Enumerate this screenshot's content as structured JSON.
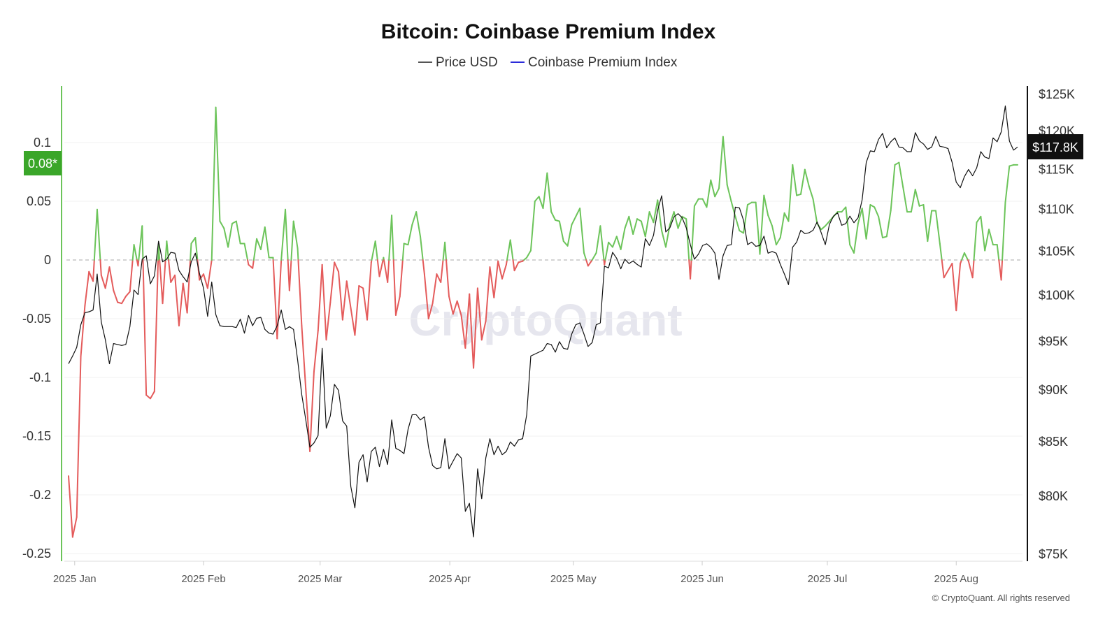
{
  "chart_data": {
    "type": "line",
    "title": "Bitcoin: Coinbase Premium Index",
    "legend": [
      {
        "name": "Price USD",
        "color": "#555555"
      },
      {
        "name": "Coinbase Premium Index",
        "color": "#2b2bd9"
      }
    ],
    "legend_position": "top-center",
    "colors": {
      "positive": "#6cc45a",
      "negative": "#e45b5b",
      "price": "#111111",
      "left_axis": "#6cc45a",
      "badge_left": "#3aa629",
      "badge_right": "#111111"
    },
    "left_axis": {
      "ylim": [
        -0.25,
        0.13
      ],
      "ticks": [
        {
          "label": "0.1",
          "value": 0.1
        },
        {
          "label": "0.05",
          "value": 0.05
        },
        {
          "label": "0",
          "value": 0
        },
        {
          "label": "-0.05",
          "value": -0.05
        },
        {
          "label": "-0.1",
          "value": -0.1
        },
        {
          "label": "-0.15",
          "value": -0.15
        },
        {
          "label": "-0.2",
          "value": -0.2
        },
        {
          "label": "-0.25",
          "value": -0.25
        }
      ],
      "current_label": "0.08*",
      "current_value": 0.081
    },
    "right_axis": {
      "scale": "log",
      "ylim": [
        75,
        125
      ],
      "ticks": [
        {
          "label": "$125K",
          "value": 125
        },
        {
          "label": "$120K",
          "value": 120
        },
        {
          "label": "$115K",
          "value": 115
        },
        {
          "label": "$110K",
          "value": 110
        },
        {
          "label": "$105K",
          "value": 105
        },
        {
          "label": "$100K",
          "value": 100
        },
        {
          "label": "$95K",
          "value": 95
        },
        {
          "label": "$90K",
          "value": 90
        },
        {
          "label": "$85K",
          "value": 85
        },
        {
          "label": "$80K",
          "value": 80
        },
        {
          "label": "$75K",
          "value": 75
        }
      ],
      "current_label": "$117.8K",
      "current_value": 117.8
    },
    "x_ticks": [
      {
        "label": "2025 Jan",
        "index": 1.5
      },
      {
        "label": "2025 Feb",
        "index": 33
      },
      {
        "label": "2025 Mar",
        "index": 61.5
      },
      {
        "label": "2025 Apr",
        "index": 93.2
      },
      {
        "label": "2025 May",
        "index": 123.4
      },
      {
        "label": "2025 Jun",
        "index": 154.9
      },
      {
        "label": "2025 Jul",
        "index": 185.5
      },
      {
        "label": "2025 Aug",
        "index": 217
      }
    ],
    "grid": true,
    "series": [
      {
        "name": "Coinbase Premium Index",
        "axis": "left",
        "values": [
          -0.184,
          -0.236,
          -0.219,
          -0.082,
          -0.039,
          -0.01,
          -0.018,
          0.043,
          -0.013,
          -0.024,
          -0.006,
          -0.026,
          -0.036,
          -0.037,
          -0.031,
          -0.027,
          0.013,
          -0.005,
          0.029,
          -0.115,
          -0.118,
          -0.112,
          0.013,
          -0.037,
          0.016,
          -0.019,
          -0.013,
          -0.056,
          -0.02,
          -0.045,
          0.014,
          0.019,
          -0.017,
          -0.012,
          -0.024,
          0.0,
          0.13,
          0.033,
          0.027,
          0.011,
          0.031,
          0.033,
          0.014,
          0.014,
          -0.004,
          -0.007,
          0.018,
          0.009,
          0.028,
          0.002,
          0.002,
          -0.067,
          0.0,
          0.043,
          -0.026,
          0.033,
          0.01,
          -0.056,
          -0.11,
          -0.163,
          -0.095,
          -0.06,
          -0.004,
          -0.068,
          -0.036,
          -0.002,
          -0.01,
          -0.051,
          -0.018,
          -0.041,
          -0.064,
          -0.022,
          -0.024,
          -0.051,
          -0.002,
          0.016,
          -0.014,
          0.002,
          -0.019,
          0.038,
          -0.047,
          -0.031,
          0.014,
          0.013,
          0.03,
          0.041,
          0.02,
          -0.012,
          -0.05,
          -0.037,
          -0.012,
          -0.019,
          0.015,
          -0.031,
          -0.046,
          -0.035,
          -0.047,
          -0.075,
          -0.029,
          -0.092,
          -0.024,
          -0.068,
          -0.052,
          -0.006,
          -0.032,
          -0.001,
          -0.016,
          -0.004,
          0.017,
          -0.009,
          -0.002,
          -0.001,
          0.002,
          0.008,
          0.05,
          0.054,
          0.044,
          0.074,
          0.041,
          0.034,
          0.033,
          0.016,
          0.012,
          0.03,
          0.037,
          0.044,
          0.006,
          -0.005,
          0.0,
          0.006,
          0.029,
          -0.004,
          0.015,
          0.011,
          0.02,
          0.009,
          0.027,
          0.037,
          0.022,
          0.035,
          0.033,
          0.02,
          0.041,
          0.032,
          0.051,
          0.025,
          0.011,
          0.03,
          0.041,
          0.027,
          0.037,
          0.035,
          -0.016,
          0.046,
          0.052,
          0.052,
          0.045,
          0.068,
          0.054,
          0.061,
          0.105,
          0.064,
          0.05,
          0.037,
          0.025,
          0.023,
          0.047,
          0.049,
          0.049,
          0.005,
          0.055,
          0.038,
          0.029,
          0.013,
          0.019,
          0.04,
          0.033,
          0.081,
          0.055,
          0.056,
          0.077,
          0.063,
          0.052,
          0.031,
          0.026,
          0.029,
          0.033,
          0.037,
          0.041,
          0.041,
          0.045,
          0.013,
          0.006,
          0.031,
          0.044,
          0.018,
          0.047,
          0.045,
          0.037,
          0.019,
          0.02,
          0.042,
          0.081,
          0.083,
          0.062,
          0.041,
          0.041,
          0.06,
          0.046,
          0.047,
          0.016,
          0.042,
          0.042,
          0.014,
          -0.015,
          -0.009,
          -0.003,
          -0.043,
          -0.003,
          0.006,
          -0.001,
          -0.015,
          0.032,
          0.037,
          0.008,
          0.026,
          0.013,
          0.013,
          -0.017,
          0.049,
          0.08,
          0.081,
          0.081
        ]
      },
      {
        "name": "Price USD",
        "axis": "right",
        "unit": "K USD",
        "values": [
          92.6,
          93.4,
          94.3,
          96.7,
          98.0,
          98.1,
          98.3,
          102.3,
          97.0,
          95.1,
          92.6,
          94.7,
          94.6,
          94.5,
          94.6,
          96.5,
          100.5,
          100.0,
          104.0,
          104.4,
          101.2,
          102.1,
          106.1,
          103.7,
          104.0,
          104.8,
          104.7,
          102.7,
          102.0,
          101.4,
          103.7,
          104.7,
          102.4,
          100.7,
          97.6,
          101.4,
          97.8,
          96.6,
          96.5,
          96.5,
          96.5,
          96.4,
          97.3,
          95.8,
          97.7,
          96.6,
          97.4,
          97.5,
          96.2,
          95.8,
          95.7,
          96.6,
          98.3,
          96.2,
          96.5,
          96.2,
          93.0,
          89.5,
          87.0,
          84.4,
          84.8,
          85.5,
          94.2,
          86.2,
          87.4,
          90.5,
          89.9,
          86.9,
          86.4,
          80.8,
          78.9,
          83.0,
          83.7,
          81.2,
          84.0,
          84.4,
          82.6,
          84.2,
          82.8,
          87.0,
          84.3,
          84.1,
          83.8,
          86.1,
          87.5,
          87.5,
          87.0,
          87.3,
          84.4,
          82.7,
          82.4,
          82.5,
          85.2,
          82.4,
          83.1,
          83.8,
          83.4,
          78.6,
          79.3,
          76.4,
          82.4,
          79.7,
          83.4,
          85.2,
          83.7,
          84.5,
          83.7,
          84.0,
          84.9,
          84.5,
          85.1,
          85.2,
          87.5,
          93.4,
          93.6,
          93.8,
          94.0,
          94.7,
          94.6,
          93.8,
          94.9,
          94.2,
          94.1,
          95.7,
          96.7,
          96.9,
          95.7,
          94.4,
          94.8,
          96.7,
          96.9,
          103.2,
          103.0,
          104.8,
          104.1,
          102.9,
          104.0,
          103.5,
          103.8,
          103.4,
          103.1,
          106.4,
          105.6,
          106.8,
          109.8,
          111.6,
          107.2,
          107.7,
          109.0,
          109.4,
          108.9,
          107.7,
          105.7,
          104.0,
          104.6,
          105.6,
          105.8,
          105.4,
          104.7,
          101.7,
          104.4,
          105.6,
          105.7,
          110.2,
          110.1,
          108.6,
          105.7,
          106.0,
          105.5,
          105.6,
          106.7,
          104.7,
          104.9,
          104.7,
          103.4,
          102.3,
          101.1,
          105.4,
          106.0,
          107.4,
          107.0,
          107.1,
          107.4,
          108.4,
          107.1,
          105.7,
          108.1,
          109.1,
          109.5,
          108.0,
          108.2,
          109.1,
          108.3,
          108.9,
          111.1,
          115.8,
          117.3,
          117.2,
          118.8,
          119.6,
          117.7,
          118.5,
          119.0,
          117.8,
          117.7,
          117.2,
          117.2,
          119.7,
          118.6,
          118.2,
          117.5,
          117.8,
          119.2,
          117.9,
          117.8,
          117.6,
          115.8,
          113.3,
          112.6,
          114.0,
          114.9,
          114.1,
          115.1,
          117.2,
          116.5,
          116.3,
          119.0,
          118.5,
          119.8,
          123.3,
          118.6,
          117.4,
          117.8
        ]
      }
    ],
    "watermark": "CryptoQuant",
    "copyright": "© CryptoQuant. All rights reserved"
  }
}
